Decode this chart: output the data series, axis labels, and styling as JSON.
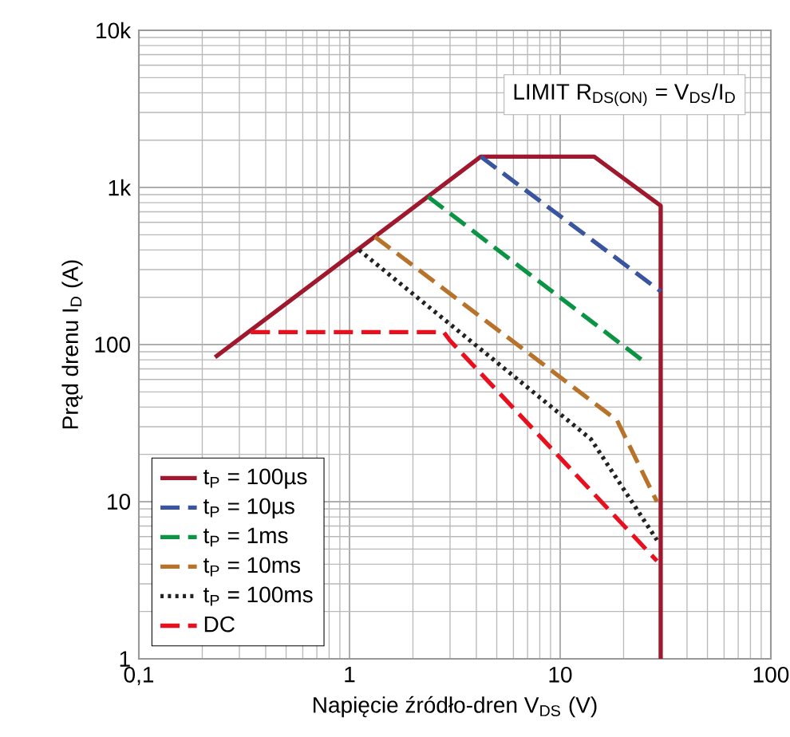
{
  "chart_data": {
    "type": "line",
    "xlabel": "Napięcie źródło-dren V$_{DS}$ (V)",
    "ylabel": "Prąd drenu I$_{D}$ (A)",
    "log": "xy",
    "grid": true,
    "legend": "bottom left",
    "xlim": [
      0.1,
      100
    ],
    "ylim": [
      1,
      10000
    ],
    "xticks": [
      {
        "value": 0.1,
        "label": "0,1"
      },
      1,
      10,
      100
    ],
    "yticks": [
      1,
      10,
      100,
      {
        "value": 1000,
        "label": "1k"
      },
      {
        "value": 10000,
        "label": "10k"
      }
    ],
    "annotations": [
      "LIMIT R$_{DS(ON)}$ = V$_{DS}$/I$_{D}$"
    ],
    "series": [
      {
        "name": "t$_{P}$ = 100µs",
        "color": "#a0182d",
        "line_style": "solid",
        "x": [
          0.23,
          4.2,
          14.5,
          30,
          30
        ],
        "values": [
          83,
          1570,
          1570,
          765,
          1
        ]
      },
      {
        "name": "t$_{P}$ = 10µs",
        "color": "#3a55a0",
        "line_style": "dashed",
        "x": [
          4.2,
          30
        ],
        "values": [
          1570,
          218
        ]
      },
      {
        "name": "t$_{P}$ = 1ms",
        "color": "#0a9444",
        "line_style": "dashed",
        "x": [
          2.36,
          25
        ],
        "values": [
          873,
          78
        ]
      },
      {
        "name": "t$_{P}$ = 10ms",
        "color": "#b8732a",
        "line_style": "dashed",
        "x": [
          1.32,
          18.6,
          28.8
        ],
        "values": [
          486,
          33,
          10
        ]
      },
      {
        "name": "t$_{P}$ = 100ms",
        "color": "#222222",
        "line_style": "dotted",
        "x": [
          1.11,
          14,
          28.8
        ],
        "values": [
          400,
          25,
          5.7
        ]
      },
      {
        "name": "DC",
        "color": "#e8101e",
        "line_style": "dashed",
        "x": [
          0.34,
          2.8,
          3.0,
          28.8
        ],
        "values": [
          120,
          120,
          106,
          4.2
        ]
      }
    ]
  }
}
